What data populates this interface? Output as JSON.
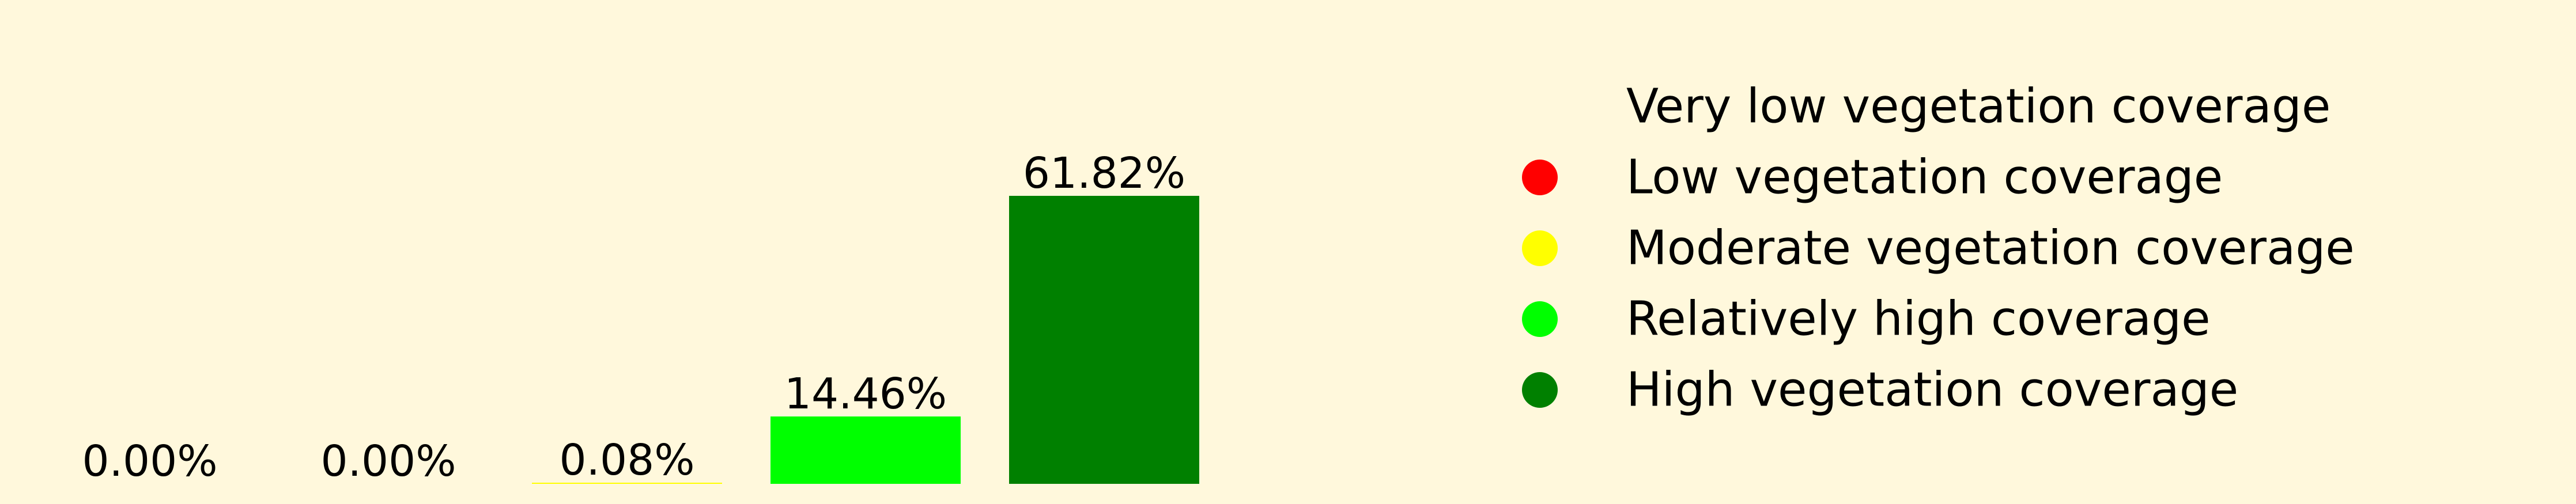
{
  "chart_data": {
    "type": "bar",
    "categories": [
      "Very low vegetation coverage",
      "Low vegetation coverage",
      "Moderate vegetation coverage",
      "Relatively high coverage",
      "High vegetation coverage"
    ],
    "values": [
      0.0,
      0.0,
      0.08,
      14.46,
      61.82
    ],
    "data_labels": [
      "0.00%",
      "0.00%",
      "0.08%",
      "14.46%",
      "61.82%"
    ],
    "colors": [
      "#FFF8DC",
      "#FF0000",
      "#FFFF00",
      "#00FF00",
      "#008000"
    ],
    "ylim": [
      0,
      65
    ],
    "axes_visible": false,
    "grid": false,
    "legend_position": "right",
    "background": "#FFF8DC"
  }
}
